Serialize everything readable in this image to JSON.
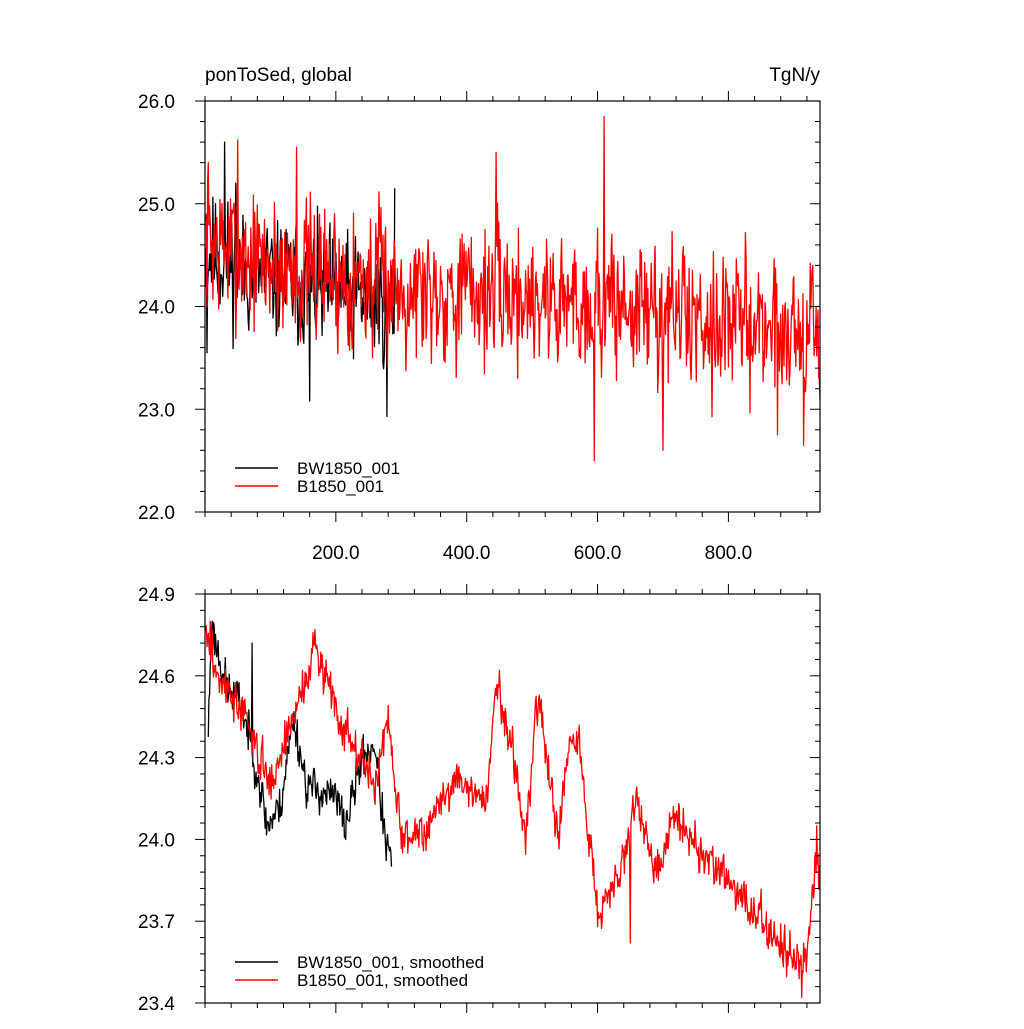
{
  "chart_data": [
    {
      "type": "line",
      "title": "ponToSed, global",
      "units_label": "TgN/y",
      "xlim": [
        0,
        940
      ],
      "ylim": [
        22.0,
        26.0
      ],
      "x_ticks": [
        200,
        400,
        600,
        800
      ],
      "x_tick_labels": [
        "200.0",
        "400.0",
        "600.0",
        "800.0"
      ],
      "y_ticks": [
        22.0,
        23.0,
        24.0,
        25.0,
        26.0
      ],
      "y_tick_labels": [
        "22.0",
        "23.0",
        "24.0",
        "25.0",
        "26.0"
      ],
      "legend_position": "bottom-left",
      "series": [
        {
          "name": "BW1850_001",
          "color": "#000000",
          "generator": {
            "seed": 11,
            "x_start": 1,
            "x_end": 290,
            "trend": [
              [
                1,
                24.55
              ],
              [
                60,
                24.35
              ],
              [
                150,
                24.2
              ],
              [
                290,
                24.0
              ]
            ],
            "noise": 0.38,
            "clip": [
              22.93,
              25.6
            ],
            "anchors": [
              [
                3,
                23.55
              ],
              [
                30,
                25.6
              ],
              [
                47,
                25.2
              ],
              [
                160,
                23.08
              ],
              [
                278,
                22.93
              ],
              [
                290,
                25.15
              ]
            ]
          }
        },
        {
          "name": "B1850_001",
          "color": "#ff0000",
          "generator": {
            "seed": 7,
            "x_start": 1,
            "x_end": 940,
            "trend": [
              [
                1,
                24.65
              ],
              [
                100,
                24.4
              ],
              [
                300,
                24.2
              ],
              [
                500,
                24.1
              ],
              [
                700,
                23.95
              ],
              [
                940,
                23.75
              ]
            ],
            "noise": 0.45,
            "clip": [
              22.5,
              25.85
            ],
            "anchors": [
              [
                5,
                25.4
              ],
              [
                50,
                25.62
              ],
              [
                140,
                25.55
              ],
              [
                445,
                25.5
              ],
              [
                595,
                22.5
              ],
              [
                610,
                25.85
              ],
              [
                700,
                22.6
              ],
              [
                875,
                22.75
              ],
              [
                915,
                22.65
              ],
              [
                940,
                23.1
              ]
            ]
          }
        }
      ]
    },
    {
      "type": "line",
      "xlim": [
        0,
        940
      ],
      "ylim": [
        23.4,
        24.9
      ],
      "y_ticks": [
        23.4,
        23.7,
        24.0,
        24.3,
        24.6,
        24.9
      ],
      "y_tick_labels": [
        "23.4",
        "23.7",
        "24.0",
        "24.3",
        "24.6",
        "24.9"
      ],
      "x_ticks": [
        200,
        400,
        600,
        800
      ],
      "legend_position": "bottom-left",
      "series": [
        {
          "name": "BW1850_001, smoothed",
          "color": "#000000",
          "generator": {
            "seed": 23,
            "x_start": 5,
            "x_end": 285,
            "trend": [
              [
                5,
                24.4
              ],
              [
                10,
                24.78
              ],
              [
                35,
                24.55
              ],
              [
                55,
                24.5
              ],
              [
                80,
                24.25
              ],
              [
                95,
                24.05
              ],
              [
                115,
                24.12
              ],
              [
                135,
                24.45
              ],
              [
                155,
                24.2
              ],
              [
                200,
                24.15
              ],
              [
                215,
                24.05
              ],
              [
                240,
                24.3
              ],
              [
                260,
                24.35
              ],
              [
                275,
                24.0
              ],
              [
                285,
                23.92
              ]
            ],
            "noise": 0.05,
            "clip": [
              23.9,
              24.8
            ],
            "anchors": [
              [
                11,
                24.8
              ],
              [
                72,
                24.72
              ],
              [
                285,
                23.9
              ]
            ]
          }
        },
        {
          "name": "B1850_001, smoothed",
          "color": "#ff0000",
          "generator": {
            "seed": 3,
            "x_start": 1,
            "x_end": 940,
            "trend": [
              [
                1,
                24.75
              ],
              [
                20,
                24.6
              ],
              [
                60,
                24.45
              ],
              [
                100,
                24.2
              ],
              [
                135,
                24.45
              ],
              [
                170,
                24.7
              ],
              [
                215,
                24.4
              ],
              [
                260,
                24.2
              ],
              [
                280,
                24.45
              ],
              [
                300,
                24.0
              ],
              [
                340,
                24.05
              ],
              [
                380,
                24.22
              ],
              [
                430,
                24.15
              ],
              [
                445,
                24.55
              ],
              [
                470,
                24.35
              ],
              [
                490,
                24.0
              ],
              [
                510,
                24.55
              ],
              [
                540,
                24.0
              ],
              [
                555,
                24.3
              ],
              [
                570,
                24.38
              ],
              [
                585,
                24.05
              ],
              [
                600,
                23.75
              ],
              [
                630,
                23.85
              ],
              [
                660,
                24.15
              ],
              [
                690,
                23.85
              ],
              [
                720,
                24.1
              ],
              [
                760,
                23.95
              ],
              [
                800,
                23.85
              ],
              [
                830,
                23.75
              ],
              [
                870,
                23.65
              ],
              [
                900,
                23.55
              ],
              [
                920,
                23.6
              ],
              [
                935,
                23.95
              ],
              [
                940,
                23.88
              ]
            ],
            "noise": 0.05,
            "clip": [
              23.42,
              24.8
            ],
            "anchors": [
              [
                8,
                24.8
              ],
              [
                168,
                24.77
              ],
              [
                450,
                24.62
              ],
              [
                600,
                23.68
              ],
              [
                650,
                23.62
              ],
              [
                912,
                23.42
              ],
              [
                935,
                24.05
              ]
            ]
          }
        }
      ]
    }
  ]
}
